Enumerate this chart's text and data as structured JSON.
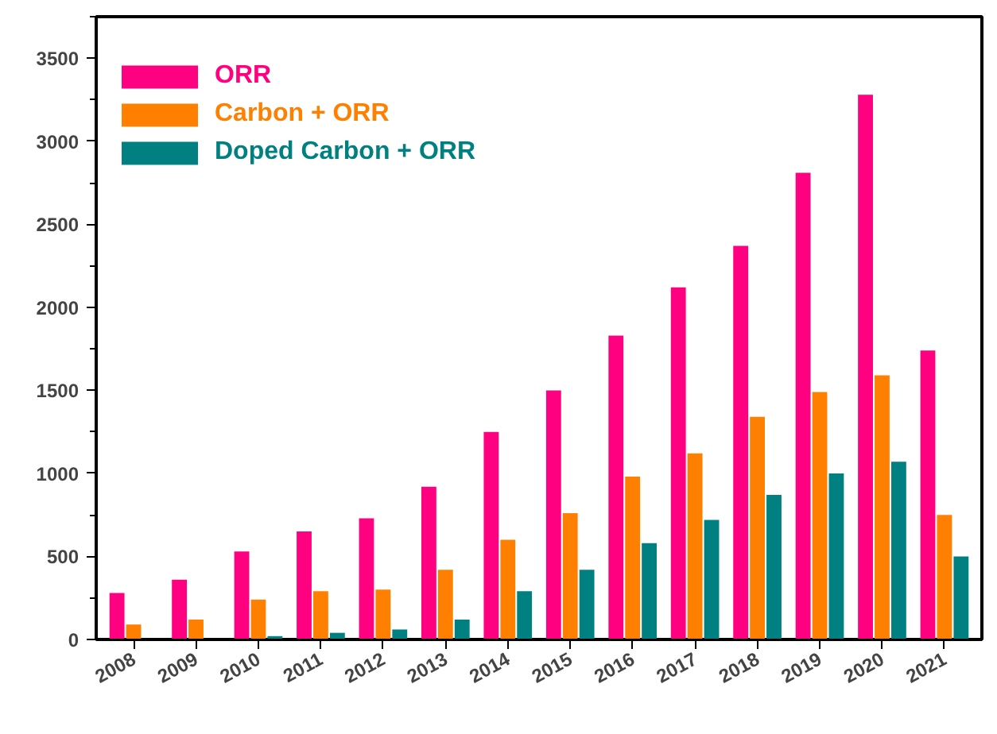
{
  "chart_data": {
    "type": "bar",
    "categories": [
      "2008",
      "2009",
      "2010",
      "2011",
      "2012",
      "2013",
      "2014",
      "2015",
      "2016",
      "2017",
      "2018",
      "2019",
      "2020",
      "2021"
    ],
    "series": [
      {
        "name": "ORR",
        "color": "#ff0080",
        "values": [
          280,
          360,
          530,
          650,
          730,
          920,
          1250,
          1500,
          1830,
          2120,
          2370,
          2810,
          3280,
          1740
        ]
      },
      {
        "name": "Carbon + ORR",
        "color": "#ff8000",
        "values": [
          90,
          120,
          240,
          290,
          300,
          420,
          600,
          760,
          980,
          1120,
          1340,
          1490,
          1590,
          750
        ]
      },
      {
        "name": "Doped Carbon + ORR",
        "color": "#008080",
        "values": [
          null,
          null,
          20,
          40,
          60,
          120,
          290,
          420,
          580,
          720,
          870,
          1000,
          1070,
          500
        ]
      }
    ],
    "ylim": [
      0,
      3750
    ],
    "yticks": [
      0,
      500,
      1000,
      1500,
      2000,
      2500,
      3000,
      3500
    ],
    "grid": false,
    "legend": "top left"
  }
}
